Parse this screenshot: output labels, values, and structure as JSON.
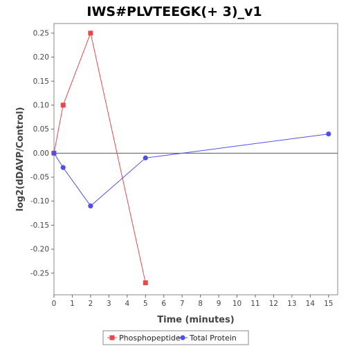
{
  "chart_data": {
    "type": "line",
    "title": "IWS#PLVTEEGK(+ 3)_v1",
    "xlabel": "Time (minutes)",
    "ylabel": "log2(dDAVP/Control)",
    "xlim": [
      0,
      15.5
    ],
    "ylim": [
      -0.295,
      0.27
    ],
    "xticks": [
      0,
      1,
      2,
      3,
      4,
      5,
      6,
      7,
      8,
      9,
      10,
      11,
      12,
      13,
      14,
      15
    ],
    "yticks": [
      -0.25,
      -0.2,
      -0.15,
      -0.1,
      -0.05,
      0.0,
      0.05,
      0.1,
      0.15,
      0.2,
      0.25
    ],
    "ytick_labels": [
      "-0.25",
      "-0.20",
      "-0.15",
      "-0.10",
      "-0.05",
      "0.00",
      "0.05",
      "0.10",
      "0.15",
      "0.20",
      "0.25"
    ],
    "grid": false,
    "zero_line": true,
    "legend_position": "bottom",
    "series": [
      {
        "name": "Phosphopeptide",
        "color": "#e8474b",
        "marker": "square",
        "x": [
          0,
          0.5,
          2,
          5
        ],
        "y": [
          0.0,
          0.1,
          0.25,
          -0.27
        ]
      },
      {
        "name": "Total Protein",
        "color": "#5050e8",
        "marker": "circle",
        "x": [
          0,
          0.5,
          2,
          5,
          15
        ],
        "y": [
          0.0,
          -0.03,
          -0.11,
          -0.01,
          0.04
        ]
      }
    ]
  }
}
